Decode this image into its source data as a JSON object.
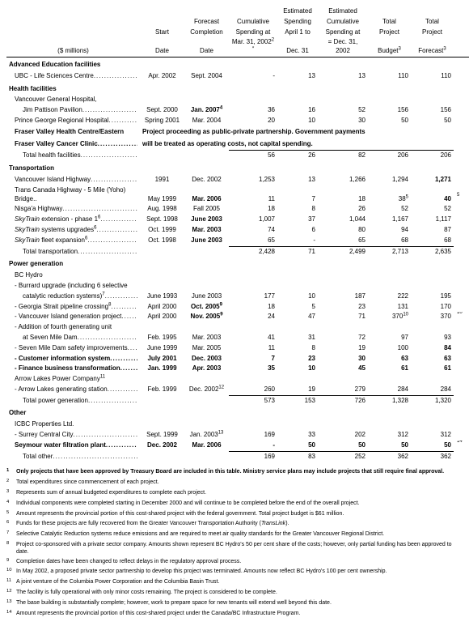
{
  "header": {
    "unit": "($ millions)",
    "cols": [
      "Start\nDate",
      "Forecast\nCompletion\nDate",
      "Cumulative\nSpending at\nMar. 31, 2002",
      "Estimated\nSpending\nApril 1 to\nDec. 31",
      "Estimated\nCumulative\nSpending at\n= Dec. 31, 2002",
      "Total\nProject\nBudget",
      "Total\nProject\nForecast"
    ],
    "sup": [
      "",
      "",
      "2 *",
      "",
      "",
      "3",
      "3"
    ]
  },
  "sections": [
    {
      "title": "Advanced Education facilities",
      "rows": [
        {
          "label": "UBC - Life Sciences Centre",
          "indent": 1,
          "dots": true,
          "cells": [
            "Apr. 2002",
            "Sept. 2004",
            "-",
            "13",
            "13",
            "110",
            "110"
          ]
        }
      ]
    },
    {
      "title": "Health facilities",
      "rows": [
        {
          "label": "Vancouver General Hospital,",
          "indent": 1,
          "dots": false,
          "cells": [
            "",
            "",
            "",
            "",
            "",
            "",
            ""
          ]
        },
        {
          "label": "Jim Pattison Pavilion",
          "indent": 2,
          "dots": true,
          "cells": [
            "Sept. 2000",
            "Jan. 2007",
            "36",
            "16",
            "52",
            "156",
            "156"
          ],
          "bold_cells": [
            1
          ],
          "cell_sup": {
            "1": "4"
          }
        },
        {
          "label": "Prince George Regional Hospital",
          "indent": 1,
          "dots": true,
          "cells": [
            "Spring 2001",
            "Mar. 2004",
            "20",
            "10",
            "30",
            "50",
            "50"
          ]
        },
        {
          "label": "Fraser Valley Health Centre/Eastern",
          "indent": 1,
          "bold": true,
          "note": "Project proceeding as public-private partnership.  Government payments"
        },
        {
          "label": "Fraser Valley Cancer Clinic",
          "indent": 1,
          "bold": true,
          "dots": true,
          "note": "will be treated as operating costs, not capital spending."
        },
        {
          "label": "Total health facilities",
          "indent": 2,
          "dots": true,
          "total": true,
          "cells": [
            "",
            "",
            "56",
            "26",
            "82",
            "206",
            "206"
          ]
        }
      ]
    },
    {
      "title": "Transportation",
      "rows": [
        {
          "label": "Vancouver Island Highway",
          "indent": 1,
          "dots": true,
          "cells": [
            "1991",
            "Dec. 2002",
            "1,253",
            "13",
            "1,266",
            "1,294",
            "1,271"
          ],
          "bold_cells": [
            6
          ]
        },
        {
          "label": "Trans Canada Highway - 5 Mile (Yoho) Bridge..",
          "indent": 1,
          "cells": [
            "May 1999",
            "Mar. 2006",
            "11",
            "7",
            "18",
            "38",
            "40"
          ],
          "bold_cells": [
            1,
            6
          ],
          "cell_sup": {
            "5": "5"
          },
          "extra_sup": "5"
        },
        {
          "label": "Nisga'a Highway",
          "indent": 1,
          "dots": true,
          "cells": [
            "Aug. 1998",
            "Fall 2005",
            "18",
            "8",
            "26",
            "52",
            "52"
          ]
        },
        {
          "label": "SkyTrain  extension - phase 1",
          "indent": 1,
          "italic_word": "SkyTrain",
          "dots": true,
          "cells": [
            "Sept. 1998",
            "June 2003",
            "1,007",
            "37",
            "1,044",
            "1,167",
            "1,117"
          ],
          "bold_cells": [
            1
          ],
          "label_sup": "6"
        },
        {
          "label": "SkyTrain  systems upgrades",
          "indent": 1,
          "italic_word": "SkyTrain",
          "dots": true,
          "cells": [
            "Oct. 1999",
            "Mar. 2003",
            "74",
            "6",
            "80",
            "94",
            "87"
          ],
          "bold_cells": [
            1
          ],
          "label_sup": "6"
        },
        {
          "label": "SkyTrain  fleet expansion",
          "indent": 1,
          "italic_word": "SkyTrain",
          "dots": true,
          "cells": [
            "Oct. 1998",
            "June 2003",
            "65",
            "-",
            "65",
            "68",
            "68"
          ],
          "bold_cells": [
            1
          ],
          "label_sup": "6"
        },
        {
          "label": "Total transportation",
          "indent": 2,
          "dots": true,
          "total": true,
          "cells": [
            "",
            "",
            "2,428",
            "71",
            "2,499",
            "2,713",
            "2,635"
          ]
        }
      ]
    },
    {
      "title": "Power generation",
      "rows": [
        {
          "label": "BC Hydro",
          "indent": 1,
          "cells": [
            "",
            "",
            "",
            "",
            "",
            "",
            ""
          ]
        },
        {
          "label": "- Burrard upgrade (including 6 selective",
          "indent": 1,
          "cells": [
            "",
            "",
            "",
            "",
            "",
            "",
            ""
          ]
        },
        {
          "label": "catalytic reduction systems)",
          "indent": 2,
          "dots": true,
          "label_sup": "7",
          "cells": [
            "June 1993",
            "June 2003",
            "177",
            "10",
            "187",
            "222",
            "195"
          ]
        },
        {
          "label": "- Georgia Strait pipeline crossing",
          "indent": 1,
          "dots": true,
          "label_sup": "8",
          "cells": [
            "April 2000",
            "Oct. 2005",
            "18",
            "5",
            "23",
            "131",
            "170"
          ],
          "bold_cells": [
            1
          ],
          "cell_sup": {
            "1": "9"
          }
        },
        {
          "label": "- Vancouver Island generation project",
          "indent": 1,
          "dots": true,
          "cells": [
            "April 2000",
            "Nov. 2005",
            "24",
            "47",
            "71",
            "370",
            "370"
          ],
          "bold_cells": [
            1
          ],
          "cell_sup": {
            "1": "9",
            "5": "10"
          },
          "extra_sup": "10"
        },
        {
          "label": "- Addition of fourth generating unit",
          "indent": 1,
          "cells": [
            "",
            "",
            "",
            "",
            "",
            "",
            ""
          ]
        },
        {
          "label": "at Seven Mile Dam",
          "indent": 2,
          "dots": true,
          "cells": [
            "Feb. 1995",
            "Mar. 2003",
            "41",
            "31",
            "72",
            "97",
            "93"
          ]
        },
        {
          "label": "- Seven Mile Dam safety improvements",
          "indent": 1,
          "dots": true,
          "cells": [
            "June 1999",
            "Mar. 2005",
            "11",
            "8",
            "19",
            "100",
            "84"
          ],
          "bold_cells": [
            6
          ]
        },
        {
          "label": "- Customer information system",
          "indent": 1,
          "dots": true,
          "bold": true,
          "cells": [
            "July 2001",
            "Dec. 2003",
            "7",
            "23",
            "30",
            "63",
            "63"
          ],
          "bold_cells": [
            0,
            1,
            2,
            3,
            4,
            5,
            6
          ]
        },
        {
          "label": "- Finance business transformation",
          "indent": 1,
          "dots": true,
          "bold": true,
          "cells": [
            "Jan. 1999",
            "Apr. 2003",
            "35",
            "10",
            "45",
            "61",
            "61"
          ],
          "bold_cells": [
            0,
            1,
            2,
            3,
            4,
            5,
            6
          ]
        },
        {
          "label": "Arrow Lakes Power Company",
          "indent": 1,
          "label_sup": "11",
          "cells": [
            "",
            "",
            "",
            "",
            "",
            "",
            ""
          ]
        },
        {
          "label": "- Arrow Lakes generating station",
          "indent": 1,
          "dots": true,
          "cells": [
            "Feb. 1999",
            "Dec. 2002",
            "260",
            "19",
            "279",
            "284",
            "284"
          ],
          "cell_sup": {
            "1": "12"
          }
        },
        {
          "label": "Total power generation",
          "indent": 2,
          "dots": true,
          "total": true,
          "cells": [
            "",
            "",
            "573",
            "153",
            "726",
            "1,328",
            "1,320"
          ]
        }
      ]
    },
    {
      "title": "Other",
      "rows": [
        {
          "label": "ICBC Properties Ltd.",
          "indent": 1,
          "cells": [
            "",
            "",
            "",
            "",
            "",
            "",
            ""
          ]
        },
        {
          "label": "- Surrey Central City",
          "indent": 1,
          "dots": true,
          "cells": [
            "Sept. 1999",
            "Jan. 2003",
            "169",
            "33",
            "202",
            "312",
            "312"
          ],
          "cell_sup": {
            "1": "13"
          }
        },
        {
          "label": "Seymour water filtration plant",
          "indent": 1,
          "dots": true,
          "bold": true,
          "cells": [
            "Dec. 2002",
            "Mar. 2006",
            "-",
            "50",
            "50",
            "50",
            "50"
          ],
          "bold_cells": [
            0,
            1,
            2,
            3,
            4,
            5,
            6
          ],
          "extra_sup": "14"
        },
        {
          "label": "Total other",
          "indent": 2,
          "dots": true,
          "total": true,
          "cells": [
            "",
            "",
            "169",
            "83",
            "252",
            "362",
            "362"
          ]
        }
      ]
    }
  ],
  "footnotes": [
    {
      "n": "1",
      "bold": true,
      "t": "Only projects that have been approved by Treasury Board are included in this table.  Ministry service plans may include projects that still require final approval."
    },
    {
      "n": "2",
      "t": "Total expenditures since commencement of each project."
    },
    {
      "n": "3",
      "t": "Represents sum of annual budgeted expenditures to complete each project."
    },
    {
      "n": "4",
      "t": "Individual components were completed starting in December 2000 and will continue to be completed before the end of the overall project."
    },
    {
      "n": "5",
      "t": "Amount represents the provincial portion of this cost-shared project with the federal government. Total project budget is $61 million."
    },
    {
      "n": "6",
      "t": "Funds for these projects are fully recovered from the Greater Vancouver Transportation Authority (TransLink)."
    },
    {
      "n": "7",
      "t": "Selective Catalytic Reduction systems reduce emissions and are required to meet air quality standards for the Greater Vancouver Regional District."
    },
    {
      "n": "8",
      "t": "Project co-sponsored with a private sector company.  Amounts shown represent BC Hydro's 50 per cent share of the costs; however, only partial funding has been approved to date."
    },
    {
      "n": "9",
      "t": "Completion dates have been changed to reflect delays in the regulatory approval process."
    },
    {
      "n": "10",
      "t": "In May 2002, a proposed private sector partnership to develop this project was terminated.  Amounts now reflect BC Hydro's 100 per cent ownership."
    },
    {
      "n": "11",
      "t": "A joint venture of the Columbia Power Corporation and the Columbia Basin Trust."
    },
    {
      "n": "12",
      "t": "The facility is fully operational with only minor costs remaining.  The project is considered to be complete."
    },
    {
      "n": "13",
      "t": "The base building is substantially complete; however, work to prepare space for new tenants will extend well beyond this date."
    },
    {
      "n": "14",
      "t": "Amount represents the provincial portion of this cost-shared project under the Canada/BC Infrastructure Program."
    }
  ]
}
